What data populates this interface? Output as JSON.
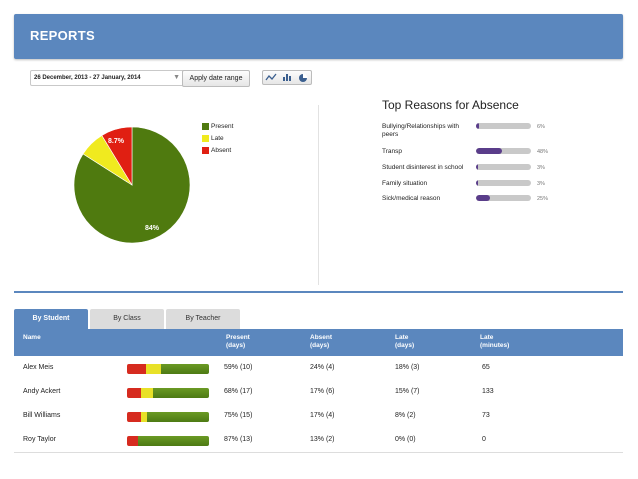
{
  "header": {
    "title": "REPORTS"
  },
  "toolbar": {
    "date_range": "26 December, 2013 - 27 January, 2014",
    "apply_label": "Apply date range",
    "view_types": [
      "line-chart-icon",
      "bar-chart-icon",
      "pie-chart-icon"
    ]
  },
  "attendance_pie": {
    "present_label": "84%",
    "absent_label": "8.7%",
    "legend": [
      "Present",
      "Late",
      "Absent"
    ],
    "colors": {
      "present": "#4f7a0f",
      "late": "#f0ea1f",
      "absent": "#e01f12"
    }
  },
  "chart_data": {
    "type": "pie",
    "categories": [
      "Present",
      "Late",
      "Absent"
    ],
    "values": [
      84,
      7.3,
      8.7
    ]
  },
  "reasons": {
    "title": "Top Reasons for Absence",
    "items": [
      {
        "label": "Bullying/Relationships with peers",
        "pct": "6%",
        "value": 6
      },
      {
        "label": "Transp",
        "pct": "48%",
        "value": 48
      },
      {
        "label": "Student disinterest in school",
        "pct": "3%",
        "value": 3
      },
      {
        "label": "Family situation",
        "pct": "3%",
        "value": 3
      },
      {
        "label": "Sick/medical reason",
        "pct": "25%",
        "value": 25
      }
    ]
  },
  "tabs": [
    "By Student",
    "By Class",
    "By Teacher"
  ],
  "table": {
    "headers": {
      "name": "Name",
      "present": [
        "Present",
        "(days)"
      ],
      "absent": [
        "Absent",
        "(days)"
      ],
      "late_days": [
        "Late",
        "(days)"
      ],
      "late_minutes": [
        "Late",
        "(minutes)"
      ]
    },
    "rows": [
      {
        "name": "Alex Meis",
        "present": "59% (10)",
        "absent": "24% (4)",
        "late_days": "18% (3)",
        "late_minutes": "65",
        "bar": {
          "absent": 24,
          "late": 18,
          "present": 59
        }
      },
      {
        "name": "Andy Ackert",
        "present": "68% (17)",
        "absent": "17% (6)",
        "late_days": "15% (7)",
        "late_minutes": "133",
        "bar": {
          "absent": 17,
          "late": 15,
          "present": 68
        }
      },
      {
        "name": "Bill Williams",
        "present": "75% (15)",
        "absent": "17% (4)",
        "late_days": "8% (2)",
        "late_minutes": "73",
        "bar": {
          "absent": 17,
          "late": 8,
          "present": 75
        }
      },
      {
        "name": "Roy Taylor",
        "present": "87% (13)",
        "absent": "13% (2)",
        "late_days": "0% (0)",
        "late_minutes": "0",
        "bar": {
          "absent": 13,
          "late": 0,
          "present": 87
        }
      }
    ]
  }
}
